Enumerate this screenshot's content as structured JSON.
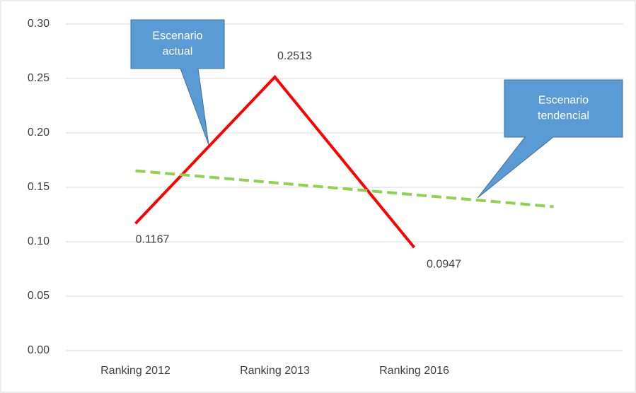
{
  "chart_data": {
    "type": "line",
    "categories": [
      "Ranking 2012",
      "Ranking 2013",
      "Ranking 2016",
      null
    ],
    "series": [
      {
        "color": "#ff0000",
        "dashed": false,
        "labels": true,
        "values": [
          0.1167,
          0.2513,
          0.0947,
          null
        ]
      },
      {
        "color": "#92d050",
        "dashed": true,
        "labels": false,
        "values": [
          0.1652,
          0.1542,
          0.1432,
          0.1322
        ]
      }
    ],
    "ylim": [
      0,
      0.3
    ],
    "yticks": [
      {
        "value": 0,
        "label": "0.00"
      },
      {
        "value": 0.05,
        "label": "0.05"
      },
      {
        "value": 0.1,
        "label": "0.10"
      },
      {
        "value": 0.15,
        "label": "0.15"
      },
      {
        "value": 0.2,
        "label": "0.20"
      },
      {
        "value": 0.25,
        "label": "0.25"
      },
      {
        "value": 0.3,
        "label": "0.30"
      }
    ],
    "grid": true,
    "annotations": [
      {
        "lines": [
          "Escenario",
          "actual"
        ]
      },
      {
        "lines": [
          "Escenario",
          "tendencial"
        ]
      }
    ]
  }
}
